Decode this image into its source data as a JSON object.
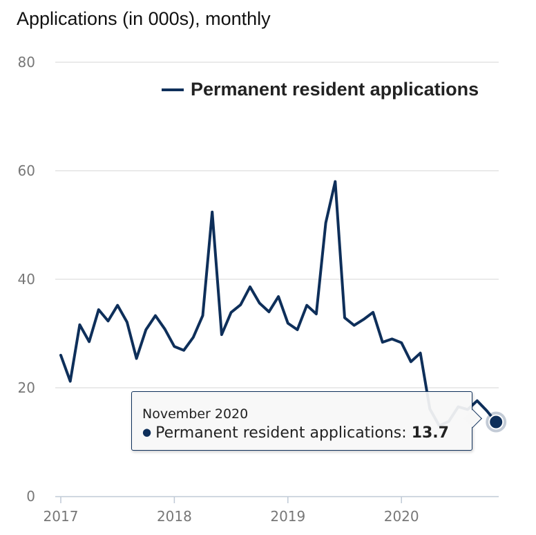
{
  "chart_data": {
    "type": "line",
    "title": "Applications (in 000s), monthly",
    "xlabel": "",
    "ylabel": "",
    "ylim": [
      0,
      80
    ],
    "yticks": [
      0,
      20,
      40,
      60,
      80
    ],
    "xticks": [
      {
        "label": "2017",
        "index": 0
      },
      {
        "label": "2018",
        "index": 12
      },
      {
        "label": "2019",
        "index": 24
      },
      {
        "label": "2020",
        "index": 36
      }
    ],
    "x_period": "Jan 2017 – Nov 2020",
    "legend_position": "top-right",
    "series": [
      {
        "name": "Permanent resident applications",
        "color": "#0e2f5a",
        "values": [
          26,
          21.2,
          31.6,
          28.5,
          34.4,
          32.3,
          35.2,
          32.1,
          25.4,
          30.7,
          33.3,
          30.8,
          27.6,
          26.9,
          29.3,
          33.3,
          52.4,
          29.8,
          33.9,
          35.3,
          38.6,
          35.6,
          34.0,
          36.8,
          31.9,
          30.7,
          35.2,
          33.6,
          50.4,
          58.0,
          32.9,
          31.5,
          32.6,
          33.9,
          28.4,
          29.0,
          28.3,
          24.8,
          26.4,
          16.1,
          13.0,
          13.8,
          16.5,
          16.0,
          17.6,
          15.8,
          13.7
        ]
      }
    ],
    "highlight": {
      "index": 46
    }
  },
  "tooltip": {
    "date": "November 2020",
    "series_name": "Permanent resident applications:",
    "value": "13.7"
  }
}
